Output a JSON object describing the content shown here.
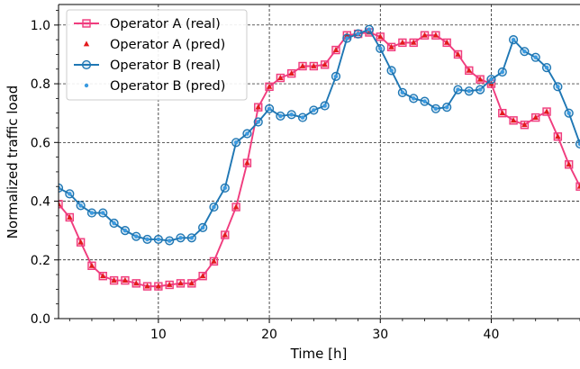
{
  "chart_data": {
    "type": "line",
    "xlabel": "Time [h]",
    "ylabel": "Normalized traffic load",
    "xlim": [
      1,
      48
    ],
    "ylim": [
      0.0,
      1.07
    ],
    "xticks": [
      10,
      20,
      30,
      40
    ],
    "yticks": [
      0.0,
      0.2,
      0.4,
      0.6,
      0.8,
      1.0
    ],
    "ytick_labels": [
      "0.0",
      "0.2",
      "0.4",
      "0.6",
      "0.8",
      "1.0"
    ],
    "grid": true,
    "legend_position": "top-left",
    "x": [
      1,
      2,
      3,
      4,
      5,
      6,
      7,
      8,
      9,
      10,
      11,
      12,
      13,
      14,
      15,
      16,
      17,
      18,
      19,
      20,
      21,
      22,
      23,
      24,
      25,
      26,
      27,
      28,
      29,
      30,
      31,
      32,
      33,
      34,
      35,
      36,
      37,
      38,
      39,
      40,
      41,
      42,
      43,
      44,
      45,
      46,
      47,
      48
    ],
    "series": [
      {
        "name": "Operator A (real)",
        "color": "#f03c7e",
        "marker": "square",
        "values": [
          0.39,
          0.345,
          0.26,
          0.18,
          0.145,
          0.13,
          0.13,
          0.12,
          0.11,
          0.11,
          0.115,
          0.12,
          0.12,
          0.145,
          0.195,
          0.285,
          0.38,
          0.53,
          0.72,
          0.79,
          0.82,
          0.835,
          0.86,
          0.86,
          0.865,
          0.915,
          0.965,
          0.97,
          0.975,
          0.96,
          0.925,
          0.94,
          0.94,
          0.965,
          0.965,
          0.94,
          0.9,
          0.845,
          0.815,
          0.8,
          0.7,
          0.675,
          0.66,
          0.685,
          0.705,
          0.62,
          0.525,
          0.45
        ]
      },
      {
        "name": "Operator A (pred)",
        "color": "#e31a1c",
        "marker": "triangle",
        "values": [
          0.39,
          0.345,
          0.26,
          0.18,
          0.145,
          0.13,
          0.13,
          0.12,
          0.11,
          0.11,
          0.115,
          0.12,
          0.12,
          0.145,
          0.195,
          0.285,
          0.38,
          0.53,
          0.72,
          0.79,
          0.82,
          0.835,
          0.86,
          0.86,
          0.865,
          0.915,
          0.965,
          0.97,
          0.975,
          0.96,
          0.925,
          0.94,
          0.94,
          0.965,
          0.965,
          0.94,
          0.9,
          0.845,
          0.815,
          0.8,
          0.7,
          0.675,
          0.66,
          0.685,
          0.705,
          0.62,
          0.525,
          0.45
        ]
      },
      {
        "name": "Operator B (real)",
        "color": "#1f77b4",
        "marker": "circle",
        "values": [
          0.445,
          0.425,
          0.385,
          0.36,
          0.36,
          0.325,
          0.3,
          0.28,
          0.27,
          0.27,
          0.265,
          0.275,
          0.275,
          0.31,
          0.38,
          0.445,
          0.6,
          0.63,
          0.67,
          0.715,
          0.69,
          0.695,
          0.685,
          0.71,
          0.725,
          0.825,
          0.955,
          0.97,
          0.985,
          0.92,
          0.845,
          0.77,
          0.75,
          0.74,
          0.715,
          0.72,
          0.78,
          0.775,
          0.78,
          0.815,
          0.84,
          0.95,
          0.91,
          0.89,
          0.855,
          0.79,
          0.7,
          0.595
        ]
      },
      {
        "name": "Operator B (pred)",
        "color": "#3a9ae0",
        "marker": "dot",
        "values": [
          0.445,
          0.425,
          0.385,
          0.36,
          0.36,
          0.325,
          0.3,
          0.28,
          0.27,
          0.27,
          0.265,
          0.275,
          0.275,
          0.31,
          0.38,
          0.445,
          0.6,
          0.63,
          0.67,
          0.715,
          0.69,
          0.695,
          0.685,
          0.71,
          0.725,
          0.825,
          0.955,
          0.97,
          0.985,
          0.92,
          0.845,
          0.77,
          0.75,
          0.74,
          0.715,
          0.72,
          0.78,
          0.775,
          0.78,
          0.815,
          0.84,
          0.95,
          0.91,
          0.89,
          0.855,
          0.79,
          0.7,
          0.595
        ]
      }
    ]
  }
}
